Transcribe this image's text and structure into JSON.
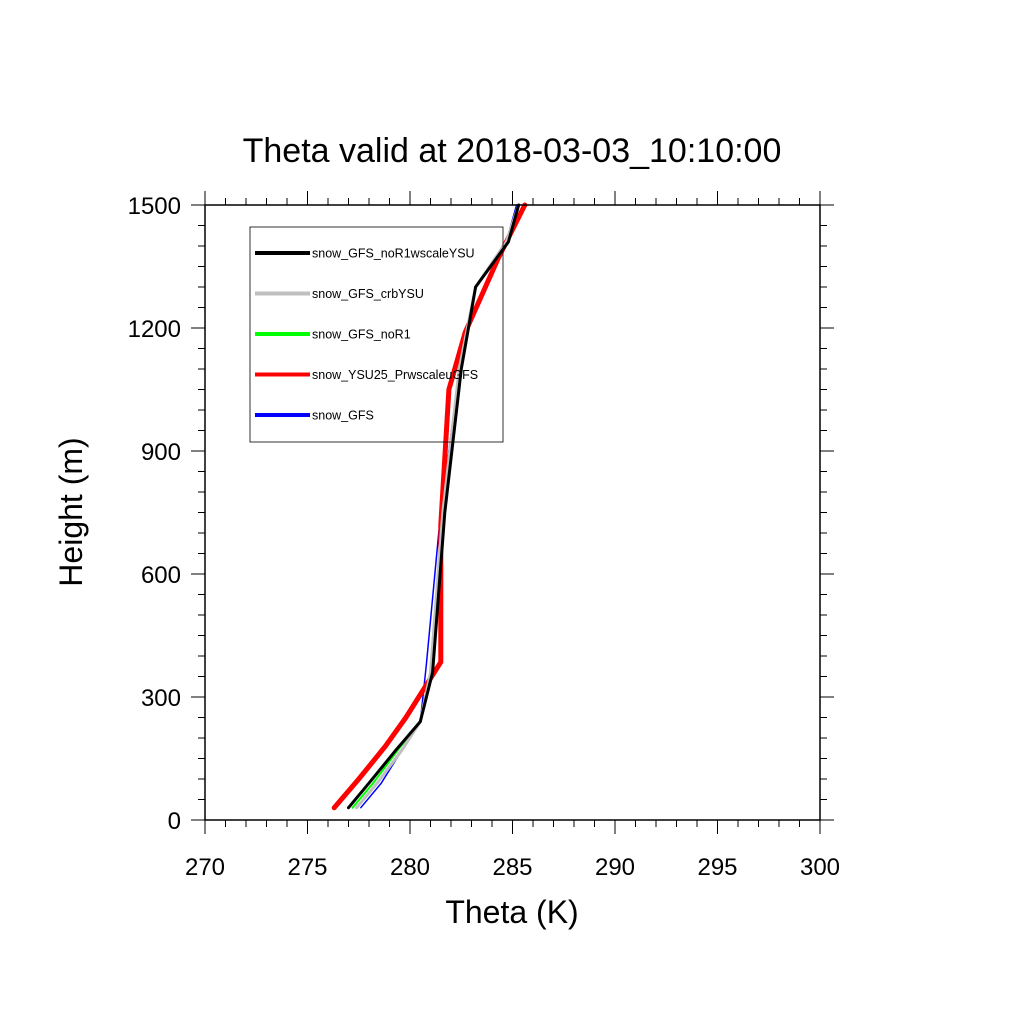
{
  "chart_data": {
    "type": "line",
    "title": "Theta valid at 2018-03-03_10:10:00",
    "xlabel": "Theta (K)",
    "ylabel": "Height (m)",
    "xlim": [
      270,
      300
    ],
    "ylim": [
      0,
      1500
    ],
    "x_ticks": [
      270,
      275,
      280,
      285,
      290,
      295,
      300
    ],
    "y_ticks": [
      0,
      300,
      600,
      900,
      1200,
      1500
    ],
    "grid": false,
    "legend_position": "top-left",
    "series": [
      {
        "name": "snow_GFS_noR1wscaleYSU",
        "color": "#000000",
        "width": 3,
        "x": [
          277.0,
          278.0,
          279.3,
          280.5,
          281.1,
          281.7,
          282.5,
          283.2,
          284.8,
          285.3
        ],
        "y": [
          30,
          90,
          170,
          240,
          360,
          750,
          1100,
          1300,
          1410,
          1500
        ]
      },
      {
        "name": "snow_GFS_crbYSU",
        "color": "#bfbfbf",
        "width": 3,
        "x": [
          277.4,
          278.4,
          279.6,
          280.5,
          281.0,
          281.6,
          282.4,
          283.2,
          284.7,
          285.3
        ],
        "y": [
          30,
          90,
          170,
          240,
          360,
          750,
          1100,
          1300,
          1410,
          1500
        ]
      },
      {
        "name": "snow_GFS_noR1",
        "color": "#00ff00",
        "width": 2,
        "x": [
          277.2,
          278.2,
          279.4,
          280.5,
          281.1,
          281.7,
          282.5,
          283.2,
          284.8,
          285.3
        ],
        "y": [
          30,
          90,
          170,
          240,
          360,
          750,
          1100,
          1300,
          1410,
          1500
        ]
      },
      {
        "name": "snow_YSU25_PrwscaleuGFS",
        "color": "#ff0000",
        "width": 5,
        "x": [
          276.3,
          277.5,
          278.8,
          279.8,
          281.5,
          281.5,
          281.9,
          282.7,
          284.3,
          285.6
        ],
        "y": [
          30,
          100,
          180,
          250,
          385,
          720,
          1050,
          1190,
          1370,
          1500
        ]
      },
      {
        "name": "snow_GFS",
        "color": "#0000ff",
        "width": 1.5,
        "x": [
          277.6,
          278.6,
          279.6,
          280.5,
          280.8,
          281.4,
          282.4,
          283.2,
          284.7,
          285.2
        ],
        "y": [
          30,
          90,
          170,
          240,
          380,
          700,
          1100,
          1300,
          1410,
          1500
        ]
      }
    ]
  }
}
